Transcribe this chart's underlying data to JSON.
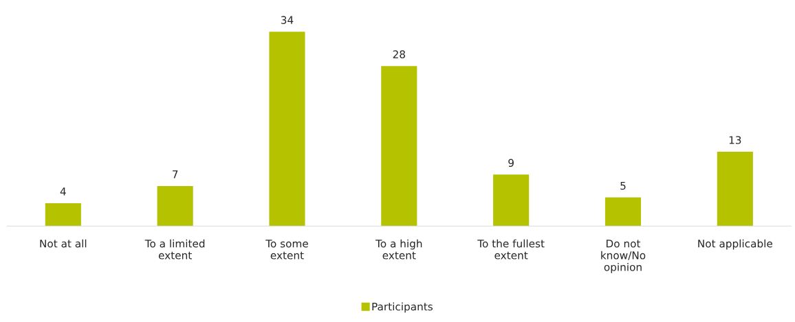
{
  "chart_data": {
    "type": "bar",
    "categories": [
      "Not at all",
      "To a limited\nextent",
      "To some\nextent",
      "To a high\nextent",
      "To the fullest\nextent",
      "Do not\nknow/No\nopinion",
      "Not applicable"
    ],
    "series": [
      {
        "name": "Participants",
        "color": "#b5c200",
        "values": [
          4,
          7,
          34,
          28,
          9,
          5,
          13
        ]
      }
    ],
    "data_labels": true,
    "grid": false,
    "legend": "bottom"
  }
}
